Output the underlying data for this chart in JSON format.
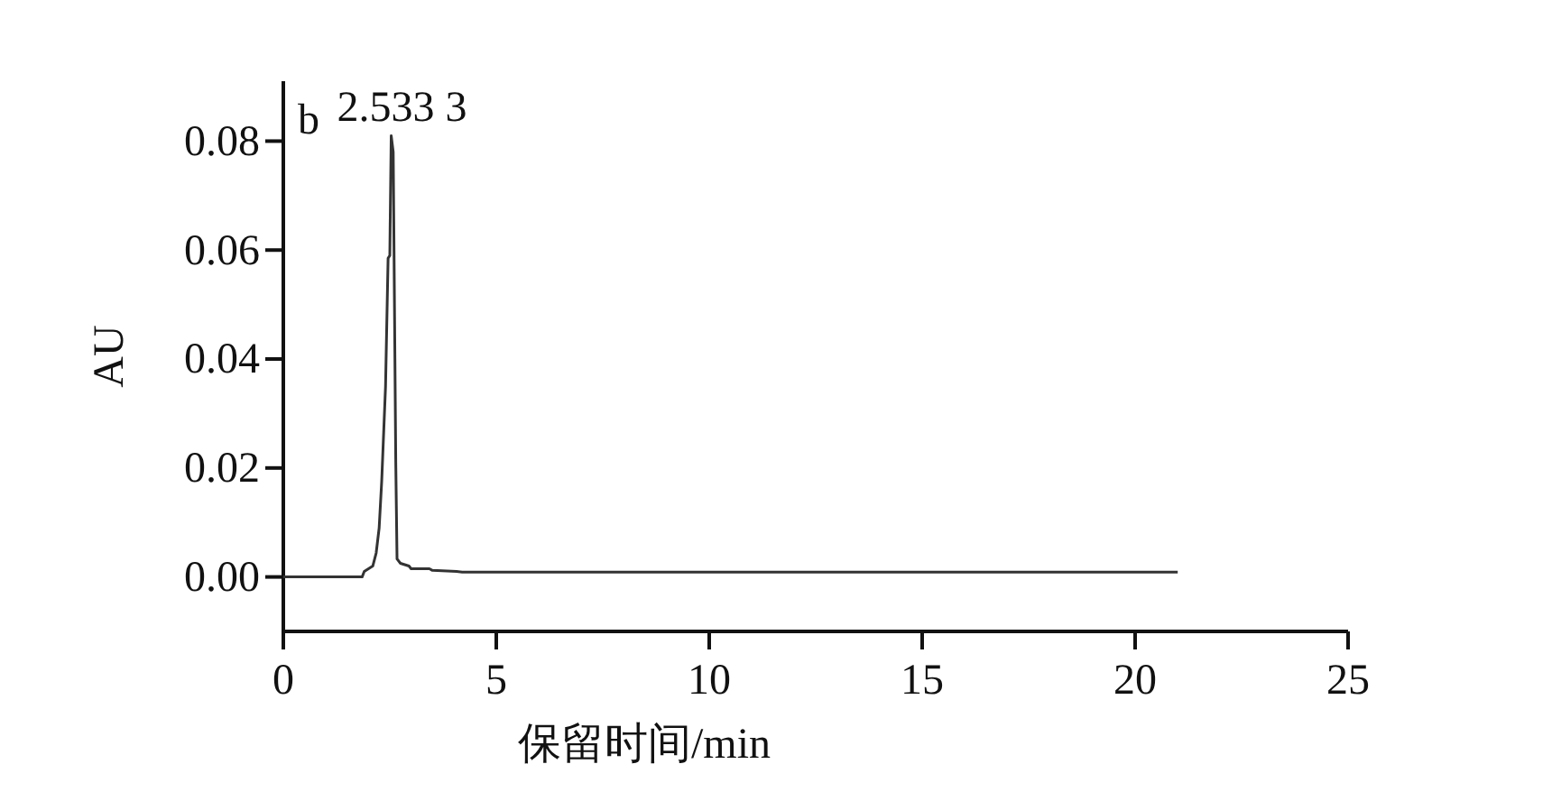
{
  "chart_data": {
    "type": "line",
    "xlabel": "保留时间/min",
    "ylabel": "AU",
    "annotations": [
      "b",
      {
        "text": "2.533 3",
        "x": 2.533,
        "y": 0.081
      }
    ],
    "xlim": [
      0,
      25
    ],
    "xticks": [
      0,
      5,
      10,
      15,
      20,
      25
    ],
    "ylim": [
      -0.01,
      0.091
    ],
    "yticks": [
      {
        "value": 0,
        "label": "0.00"
      },
      {
        "value": 0.02,
        "label": "0.02"
      },
      {
        "value": 0.04,
        "label": "0.04"
      },
      {
        "value": 0.06,
        "label": "0.06"
      },
      {
        "value": 0.08,
        "label": "0.08"
      }
    ],
    "marker": "none",
    "line_style": "solid",
    "series": [
      {
        "color": "#333333",
        "x": [
          0,
          1.85,
          1.9,
          2.1,
          2.18,
          2.25,
          2.31,
          2.4,
          2.46,
          2.5,
          2.533,
          2.58,
          2.62,
          2.64,
          2.67,
          2.75,
          2.95,
          3.0,
          3.43,
          3.5,
          4.07,
          4.2,
          21
        ],
        "values": [
          0,
          0,
          0.001,
          0.002,
          0.0044,
          0.009,
          0.0176,
          0.035,
          0.0585,
          0.059,
          0.081,
          0.078,
          0.04,
          0.021,
          0.0033,
          0.0025,
          0.002,
          0.0015,
          0.0015,
          0.0012,
          0.001,
          0.0009,
          0.0009
        ]
      }
    ]
  }
}
